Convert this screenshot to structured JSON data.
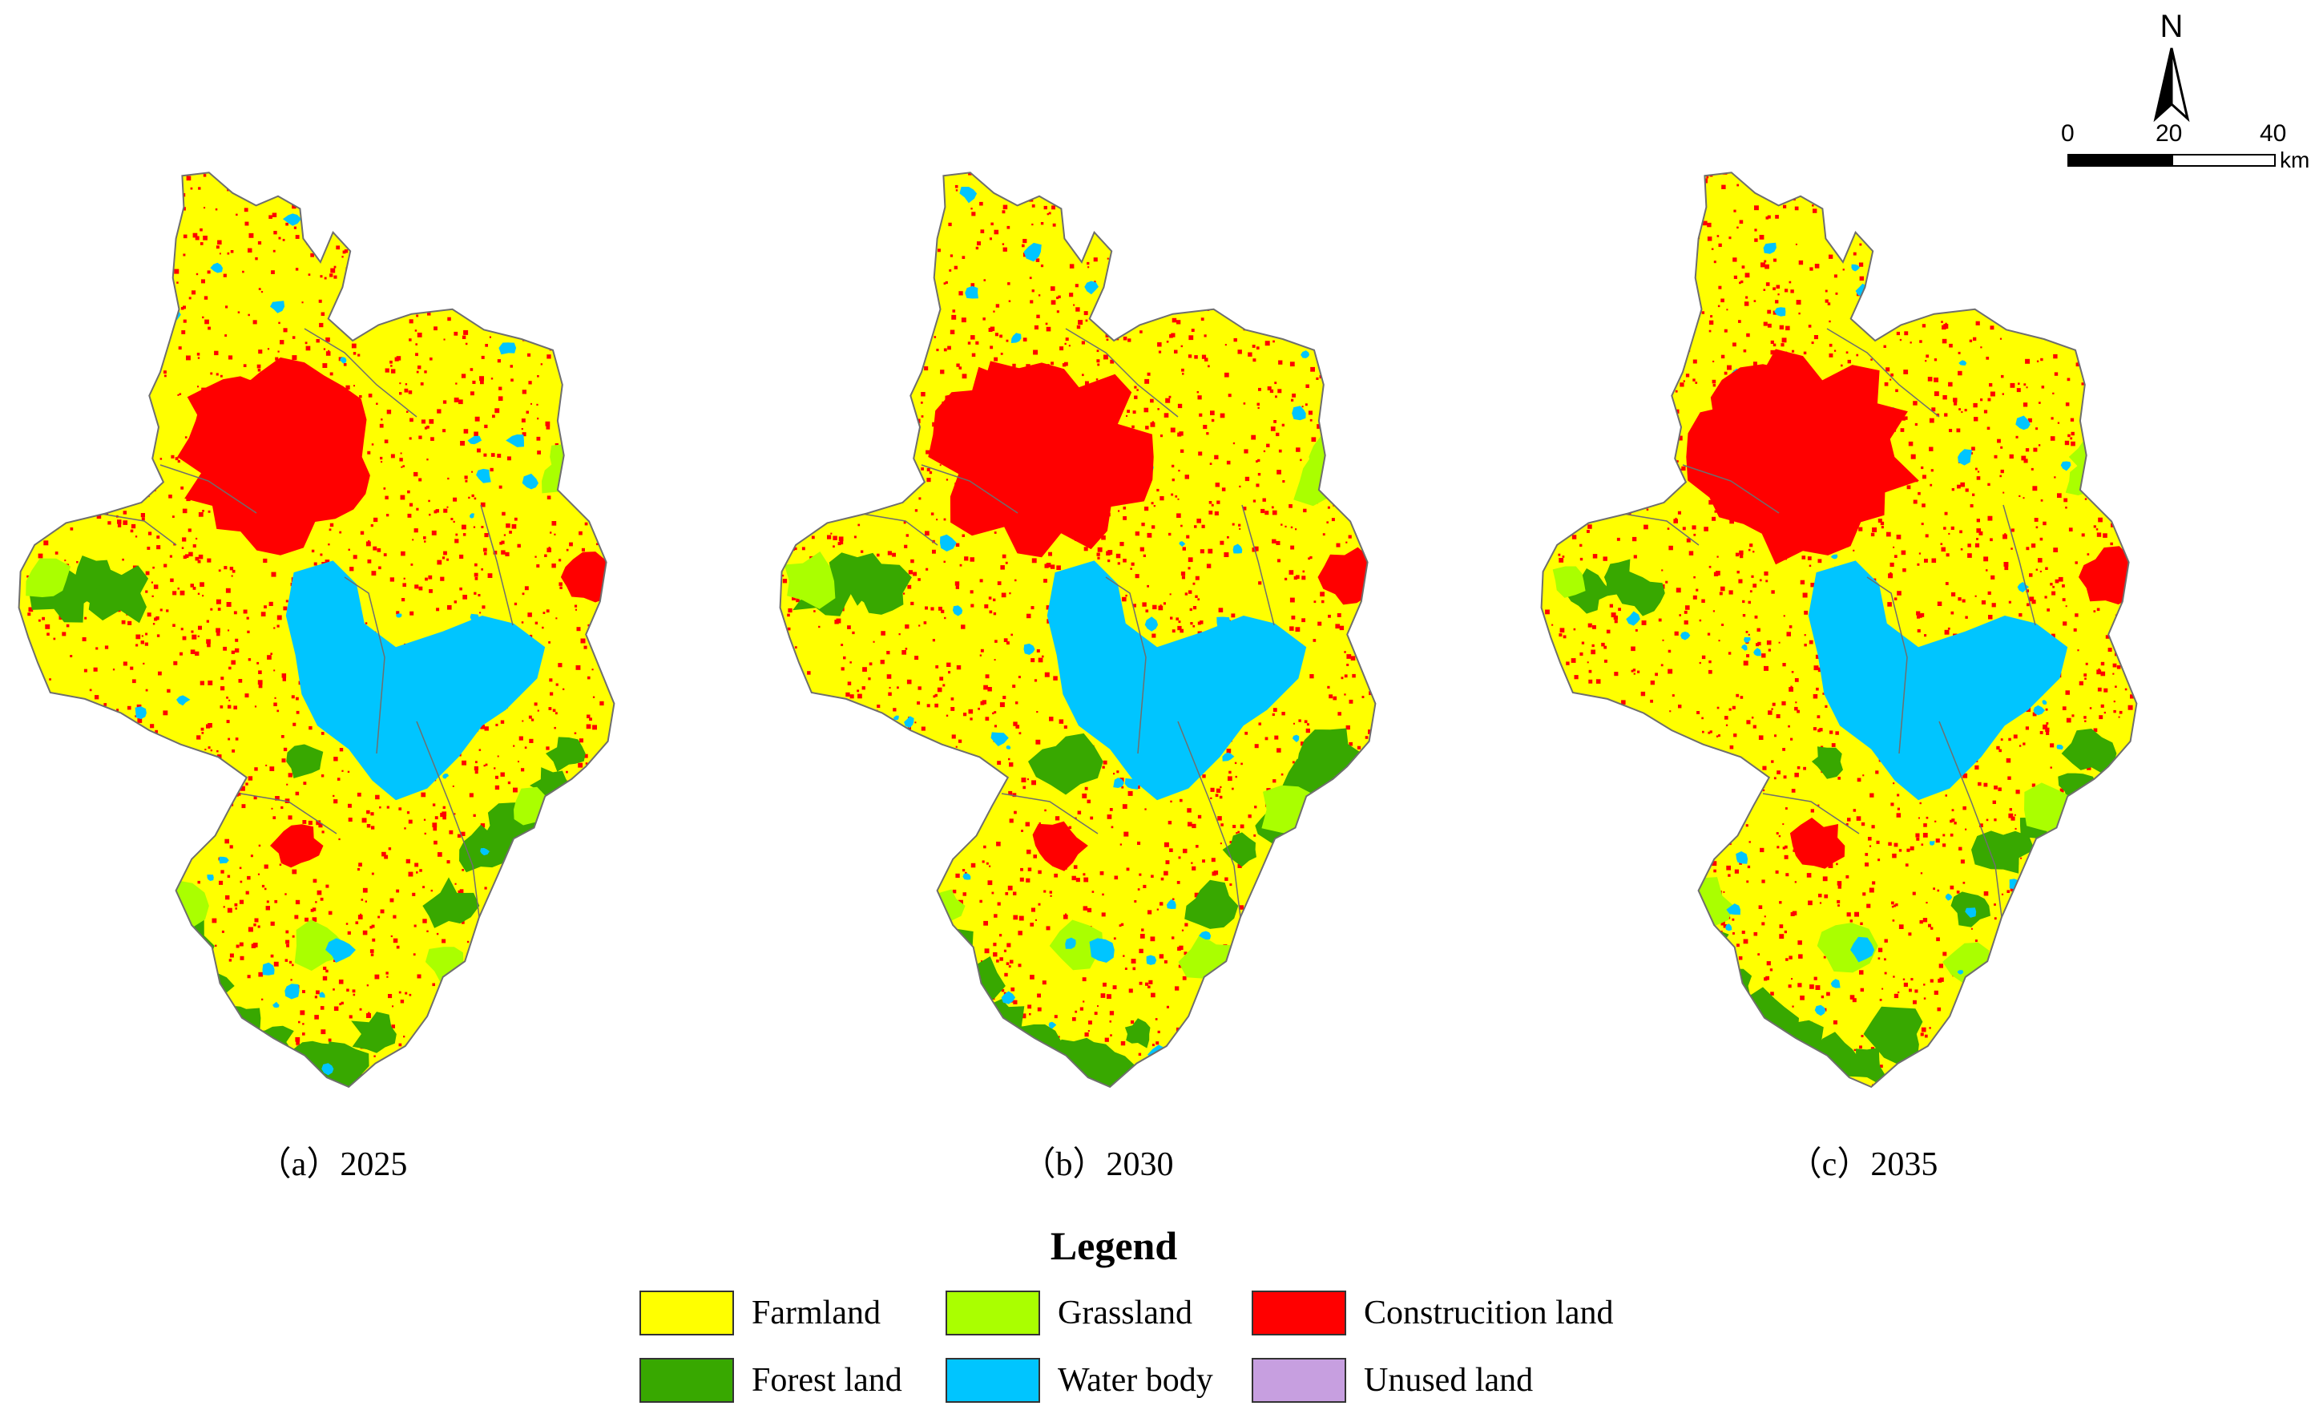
{
  "panels": [
    {
      "id": "a",
      "caption": "（a）2025"
    },
    {
      "id": "b",
      "caption": "（b）2030"
    },
    {
      "id": "c",
      "caption": "（c）2035"
    }
  ],
  "north_arrow": {
    "label": "N"
  },
  "scale_bar": {
    "ticks": [
      "0",
      "20",
      "40"
    ],
    "unit": "km"
  },
  "legend": {
    "title": "Legend",
    "items": [
      {
        "label": "Farmland",
        "color": "#ffff00"
      },
      {
        "label": "Forest land",
        "color": "#38a800"
      },
      {
        "label": "Grassland",
        "color": "#aaff00"
      },
      {
        "label": "Water body",
        "color": "#00c5ff"
      },
      {
        "label": "Construcition land",
        "color": "#ff0000"
      },
      {
        "label": "Unused land",
        "color": "#c79fe0"
      }
    ]
  },
  "colors": {
    "farmland": "#ffff00",
    "forest": "#38a800",
    "grassland": "#aaff00",
    "water": "#00c5ff",
    "construction": "#ff0000",
    "boundary": "#6e6e6e"
  }
}
